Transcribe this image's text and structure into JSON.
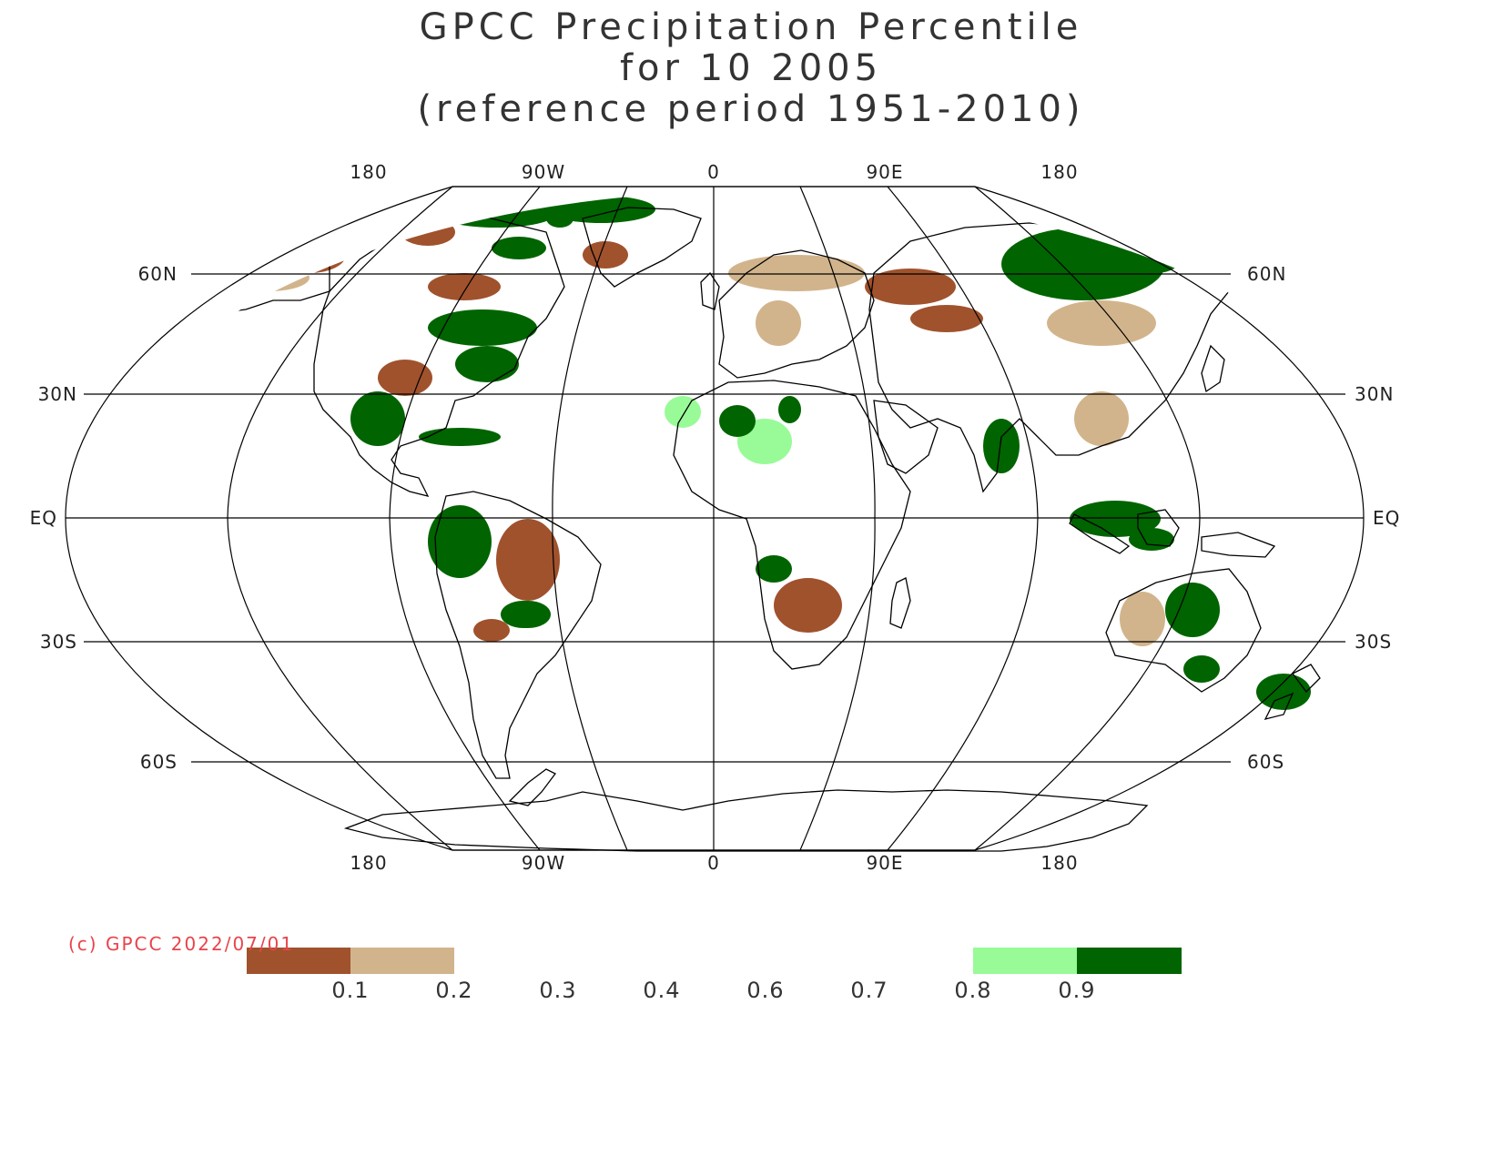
{
  "title": {
    "line1": "GPCC Precipitation Percentile",
    "line2": "for 10 2005",
    "line3": "(reference period 1951-2010)"
  },
  "map": {
    "projection": "Robinson",
    "top_lon_labels": [
      "180",
      "90W",
      "0",
      "90E",
      "180"
    ],
    "bottom_lon_labels": [
      "180",
      "90W",
      "0",
      "90E",
      "180"
    ],
    "lat_labels_left": [
      "60N",
      "30N",
      "EQ",
      "30S",
      "60S"
    ],
    "lat_labels_right": [
      "60N",
      "30N",
      "EQ",
      "30S",
      "60S"
    ]
  },
  "credit": "(c) GPCC 2022/07/01",
  "colors": {
    "very_dry": "#a0522d",
    "dry": "#d2b48c",
    "wet": "#98fb98",
    "very_wet": "#006400",
    "coast": "#000000",
    "grid": "#000000"
  },
  "legend": {
    "tick_labels": [
      "0.1",
      "0.2",
      "0.3",
      "0.4",
      "0.6",
      "0.7",
      "0.8",
      "0.9"
    ],
    "classes": [
      {
        "range": "< 0.1",
        "color": "#a0522d"
      },
      {
        "range": "0.1 - 0.2",
        "color": "#d2b48c"
      },
      {
        "range": "0.2 - 0.8",
        "color": "#ffffff"
      },
      {
        "range": "0.8 - 0.9",
        "color": "#98fb98"
      },
      {
        "range": "> 0.9",
        "color": "#006400"
      }
    ]
  },
  "regions": [
    {
      "name": "alaska",
      "category": "dry"
    },
    {
      "name": "canada-west",
      "category": "very_dry"
    },
    {
      "name": "canada-east",
      "category": "very_wet"
    },
    {
      "name": "usa-east",
      "category": "very_wet"
    },
    {
      "name": "usa-south",
      "category": "very_dry"
    },
    {
      "name": "mexico-caribbean",
      "category": "very_wet"
    },
    {
      "name": "greenland-south",
      "category": "very_dry"
    },
    {
      "name": "greenland-north",
      "category": "very_wet"
    },
    {
      "name": "amazon",
      "category": "very_wet"
    },
    {
      "name": "brazil-east",
      "category": "very_dry"
    },
    {
      "name": "southern-brazil",
      "category": "very_wet"
    },
    {
      "name": "europe",
      "category": "dry"
    },
    {
      "name": "north-africa",
      "category": "wet"
    },
    {
      "name": "sahel",
      "category": "very_wet"
    },
    {
      "name": "southern-africa",
      "category": "very_dry"
    },
    {
      "name": "angola",
      "category": "very_wet"
    },
    {
      "name": "siberia-west",
      "category": "very_dry"
    },
    {
      "name": "siberia-north",
      "category": "very_wet"
    },
    {
      "name": "china",
      "category": "dry"
    },
    {
      "name": "india",
      "category": "very_wet"
    },
    {
      "name": "southeast-asia",
      "category": "very_wet"
    },
    {
      "name": "australia-east",
      "category": "very_wet"
    },
    {
      "name": "australia-west",
      "category": "dry"
    },
    {
      "name": "new-zealand",
      "category": "very_wet"
    }
  ]
}
